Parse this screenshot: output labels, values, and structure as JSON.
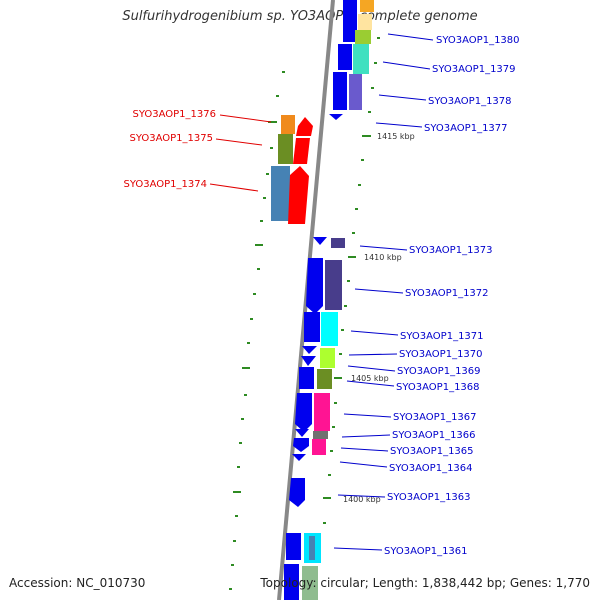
{
  "title": "Sulfurihydrogenibium sp. YO3AOP1, complete genome",
  "accession": "Accession: NC_010730",
  "topology": "Topology: circular; Length: 1,838,442 bp; Genes: 1,770",
  "kbp_labels": [
    "1415 kbp",
    "1410 kbp",
    "1405 kbp",
    "1400 kbp"
  ],
  "left_genes": [
    "SYO3AOP1_1376",
    "SYO3AOP1_1375",
    "SYO3AOP1_1374"
  ],
  "right_genes": [
    "SYO3AOP1_1380",
    "SYO3AOP1_1379",
    "SYO3AOP1_1378",
    "SYO3AOP1_1377",
    "SYO3AOP1_1373",
    "SYO3AOP1_1372",
    "SYO3AOP1_1371",
    "SYO3AOP1_1370",
    "SYO3AOP1_1369",
    "SYO3AOP1_1368",
    "SYO3AOP1_1367",
    "SYO3AOP1_1366",
    "SYO3AOP1_1365",
    "SYO3AOP1_1364",
    "SYO3AOP1_1363",
    "SYO3AOP1_1361"
  ],
  "colors": {
    "forward_strand": "#0000ee",
    "reverse_strand": "#ff0000",
    "label_blue": "#0000cc",
    "label_red": "#e00000",
    "scale_tick": "#2e8b22"
  }
}
